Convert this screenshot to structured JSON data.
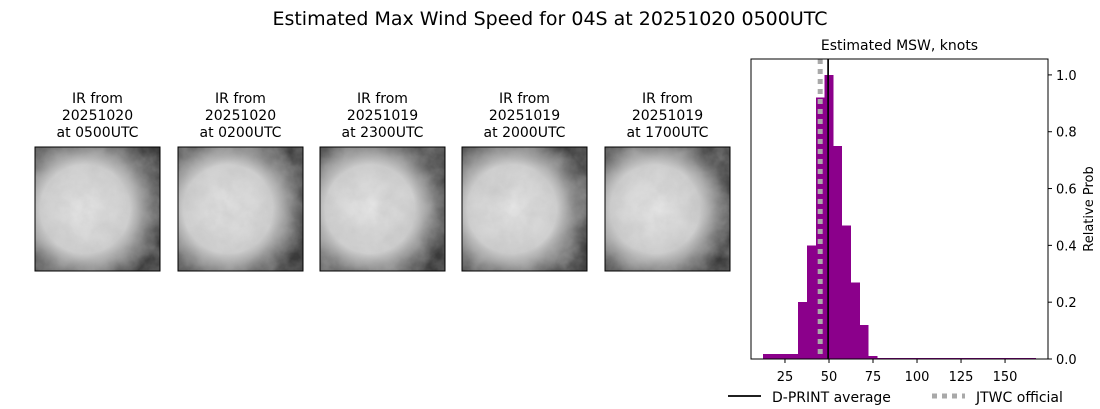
{
  "title": "Estimated Max Wind Speed for 04S at 20251020 0500UTC",
  "images": [
    {
      "caption": [
        "IR from",
        "20251020",
        "at 0500UTC"
      ]
    },
    {
      "caption": [
        "IR from",
        "20251020",
        "at 0200UTC"
      ]
    },
    {
      "caption": [
        "IR from",
        "20251019",
        "at 2300UTC"
      ]
    },
    {
      "caption": [
        "IR from",
        "20251019",
        "at 2000UTC"
      ]
    },
    {
      "caption": [
        "IR from",
        "20251019",
        "at 1700UTC"
      ]
    }
  ],
  "chart_data": {
    "type": "histogram",
    "title": "Estimated MSW, knots",
    "y_label": "Relative Prob",
    "color": "#8b008b",
    "bins": [
      12.5,
      17.5,
      22.5,
      27.5,
      32.5,
      37.5,
      42.5,
      47.5,
      52.5,
      57.5,
      62.5,
      67.5,
      72.5,
      77.5,
      82.5,
      87.5,
      92.5,
      97.5,
      102.5,
      107.5,
      112.5,
      117.5,
      122.5,
      127.5,
      132.5,
      137.5,
      142.5,
      147.5,
      152.5,
      157.5,
      162.5,
      167.5
    ],
    "counts": [
      0.017,
      0.017,
      0.017,
      0.017,
      0.2,
      0.4,
      0.92,
      1.0,
      0.75,
      0.47,
      0.27,
      0.12,
      0.01,
      0.003,
      0.003,
      0.003,
      0.003,
      0.003,
      0.003,
      0.003,
      0.003,
      0.003,
      0.003,
      0.003,
      0.003,
      0.003,
      0.003,
      0.003,
      0.003,
      0.003,
      0.003
    ],
    "xlim": [
      5.7,
      174.4
    ],
    "ylim": [
      0,
      1.056
    ],
    "xticks": [
      25,
      50,
      75,
      100,
      125,
      150
    ],
    "yticks": [
      {
        "value": 0,
        "label": "0.0"
      },
      {
        "value": 0.2,
        "label": "0.2"
      },
      {
        "value": 0.4,
        "label": "0.4"
      },
      {
        "value": 0.6,
        "label": "0.6"
      },
      {
        "value": 0.8,
        "label": "0.8"
      },
      {
        "value": 1.0,
        "label": "1.0"
      }
    ],
    "y_axis_side": "right",
    "lines": [
      {
        "name": "D-PRINT average",
        "value": 49.5,
        "color": "#000000",
        "style": "solid"
      },
      {
        "name": "JTWC official",
        "value": 45,
        "color": "#a9a9a9",
        "style": "dotted"
      }
    ]
  }
}
